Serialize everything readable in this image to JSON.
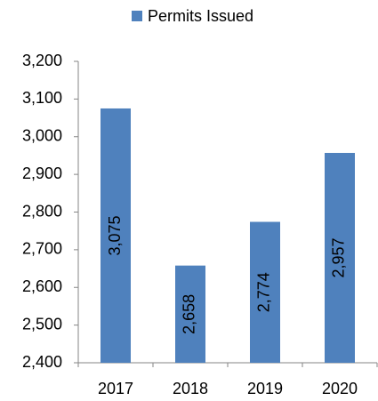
{
  "chart_data": {
    "type": "bar",
    "categories": [
      "2017",
      "2018",
      "2019",
      "2020"
    ],
    "series": [
      {
        "name": "Permits Issued",
        "color": "#4f81bd",
        "values": [
          3075,
          2658,
          2774,
          2957
        ],
        "value_labels": [
          "3,075",
          "2,658",
          "2,774",
          "2,957"
        ]
      }
    ],
    "ylim": [
      2400,
      3200
    ],
    "yticks": [
      {
        "value": 2400,
        "label": "2,400"
      },
      {
        "value": 2500,
        "label": "2,500"
      },
      {
        "value": 2600,
        "label": "2,600"
      },
      {
        "value": 2700,
        "label": "2,700"
      },
      {
        "value": 2800,
        "label": "2,800"
      },
      {
        "value": 2900,
        "label": "2,900"
      },
      {
        "value": 3000,
        "label": "3,000"
      },
      {
        "value": 3100,
        "label": "3,100"
      },
      {
        "value": 3200,
        "label": "3,200"
      }
    ],
    "grid": false,
    "legend": "top"
  }
}
